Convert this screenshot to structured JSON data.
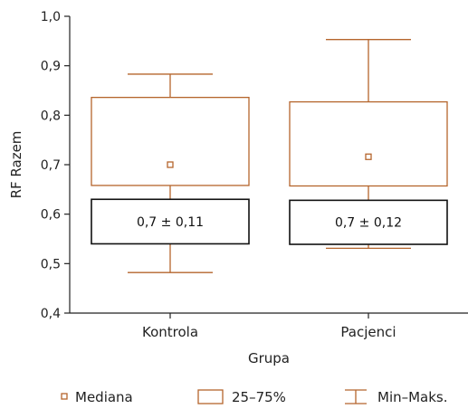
{
  "chart_data": {
    "type": "boxplot",
    "xlabel": "Grupa",
    "ylabel": "RF Razem",
    "ylim": [
      0.4,
      1.0
    ],
    "yticks": [
      "0,4",
      "0,5",
      "0,6",
      "0,7",
      "0,8",
      "0,9",
      "1,0"
    ],
    "categories": [
      "Kontrola",
      "Pacjenci"
    ],
    "groups": [
      {
        "category": "Kontrola",
        "min": 0.482,
        "q1": 0.658,
        "median": 0.7,
        "q3": 0.836,
        "max": 0.883,
        "mean_lo": 0.54,
        "mean_hi": 0.63,
        "label": "0,7 ± 0,11"
      },
      {
        "category": "Pacjenci",
        "min": 0.531,
        "q1": 0.657,
        "median": 0.716,
        "q3": 0.827,
        "max": 0.953,
        "mean_lo": 0.539,
        "mean_hi": 0.628,
        "label": "0,7 ± 0,12"
      }
    ],
    "legend": {
      "placement": "bottom",
      "items": [
        "Mediana",
        "25–75%",
        "Min–Maks."
      ]
    },
    "grid": false,
    "colors": {
      "box": "#B5652C",
      "mean_box": "#111111",
      "axis": "#222222"
    }
  }
}
